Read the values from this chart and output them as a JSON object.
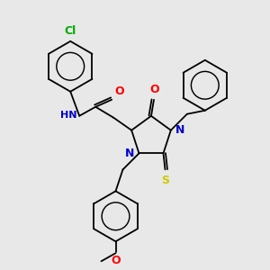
{
  "bg_color": "#e8e8e8",
  "atom_colors": {
    "N": "#0000cc",
    "O": "#ff0000",
    "S": "#cccc00",
    "Cl": "#00aa00",
    "C": "#000000",
    "H": "#555555"
  }
}
